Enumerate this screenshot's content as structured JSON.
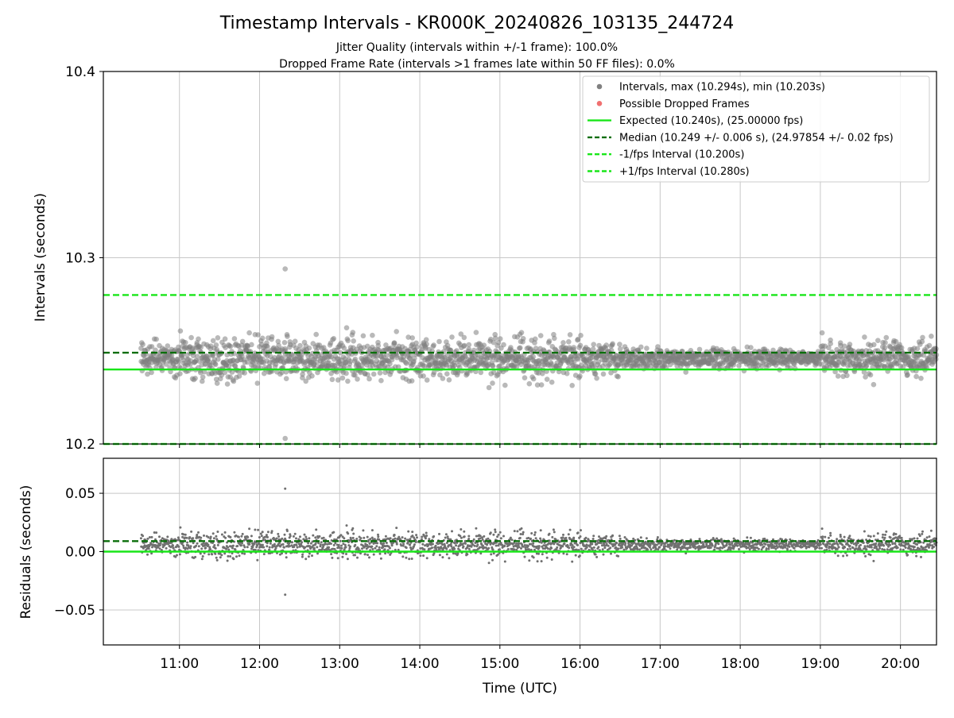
{
  "figure": {
    "title": "Timestamp Intervals - KR000K_20240826_103135_244724",
    "subtitle_line1": "Jitter Quality (intervals within +/-1 frame): 100.0%",
    "subtitle_line2": "Dropped Frame Rate (intervals >1 frames late within 50 FF files): 0.0%"
  },
  "chart_data": [
    {
      "type": "scatter",
      "panel": "top",
      "ylabel": "Intervals (seconds)",
      "ylim": [
        10.2,
        10.4
      ],
      "yticks": [
        10.2,
        10.3,
        10.4
      ],
      "ytick_labels": [
        "10.2",
        "10.3",
        "10.4"
      ],
      "xlim_hours": [
        10.05,
        20.45
      ],
      "xticks_hours": [
        11,
        12,
        13,
        14,
        15,
        16,
        17,
        18,
        19,
        20
      ],
      "xtick_labels": [
        "11:00",
        "12:00",
        "13:00",
        "14:00",
        "15:00",
        "16:00",
        "17:00",
        "18:00",
        "19:00",
        "20:00"
      ],
      "grid": true,
      "legend_position": "top-right",
      "series": [
        {
          "name": "Intervals, max (10.294s), min (10.203s)",
          "kind": "scatter",
          "color": "#808080",
          "x_range_hours": [
            10.52,
            20.45
          ],
          "center": 10.246,
          "spread": 0.01,
          "max": 10.294,
          "max_time": "12:19",
          "min": 10.203,
          "min_time": "12:19"
        },
        {
          "name": "Possible Dropped Frames",
          "kind": "scatter",
          "color": "#f07070",
          "values": []
        },
        {
          "name": "Expected (10.240s), (25.00000 fps)",
          "kind": "hline",
          "style": "solid",
          "color": "#19e619",
          "y": 10.24
        },
        {
          "name": "Median (10.249 +/- 0.006 s), (24.97854 +/- 0.02 fps)",
          "kind": "hline",
          "style": "dashed",
          "color": "#0a6e0a",
          "y": 10.249
        },
        {
          "name": "-1/fps Interval (10.200s)",
          "kind": "hline",
          "style": "dashed",
          "color": "#19e619",
          "y": 10.2
        },
        {
          "name": "+1/fps Interval (10.280s)",
          "kind": "hline",
          "style": "dashed",
          "color": "#19e619",
          "y": 10.28
        }
      ]
    },
    {
      "type": "scatter",
      "panel": "bottom",
      "xlabel": "Time (UTC)",
      "ylabel": "Residuals (seconds)",
      "ylim": [
        -0.08,
        0.08
      ],
      "yticks": [
        -0.05,
        0.0,
        0.05
      ],
      "ytick_labels": [
        "−0.05",
        "0.00",
        "0.05"
      ],
      "xlim_hours": [
        10.05,
        20.45
      ],
      "xticks_hours": [
        11,
        12,
        13,
        14,
        15,
        16,
        17,
        18,
        19,
        20
      ],
      "xtick_labels": [
        "11:00",
        "12:00",
        "13:00",
        "14:00",
        "15:00",
        "16:00",
        "17:00",
        "18:00",
        "19:00",
        "20:00"
      ],
      "grid": true,
      "series": [
        {
          "kind": "scatter",
          "color": "#707070",
          "center": 0.006,
          "max": 0.054,
          "min": -0.037
        },
        {
          "kind": "hline",
          "style": "solid",
          "color": "#19e619",
          "y": 0.0
        },
        {
          "kind": "hline",
          "style": "dashed",
          "color": "#0a6e0a",
          "y": 0.009
        }
      ]
    }
  ]
}
